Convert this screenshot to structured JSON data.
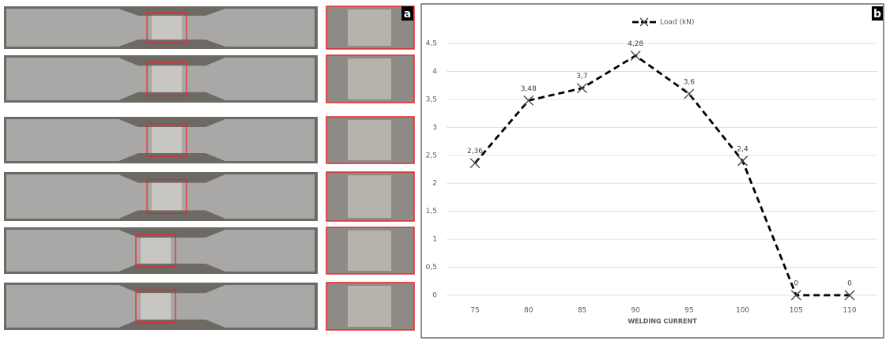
{
  "panel_labels": [
    "a",
    "b"
  ],
  "chart_data": {
    "type": "line",
    "x_label": "WELDING CURRENT",
    "categories": [
      "75",
      "80",
      "85",
      "90",
      "95",
      "100",
      "105",
      "110"
    ],
    "series": [
      {
        "name": "Load (kN)",
        "color": "#000000",
        "values": [
          2.36,
          3.48,
          3.7,
          4.28,
          3.6,
          2.4,
          0,
          0
        ],
        "value_labels": [
          "2,36",
          "3,48",
          "3,7",
          "4,28",
          "3,6",
          "2,4",
          "0",
          "0"
        ]
      }
    ],
    "ylim": [
      0,
      4.5
    ],
    "yticks": [
      0,
      {
        "value": 0.5,
        "label": "0,5"
      },
      1,
      {
        "value": 1.5,
        "label": "1,5"
      },
      2,
      {
        "value": 2.5,
        "label": "2,5"
      },
      3,
      {
        "value": 3.5,
        "label": "3,5"
      },
      4,
      {
        "value": 4.5,
        "label": "4,5"
      }
    ],
    "grid": true,
    "legend": "top"
  }
}
